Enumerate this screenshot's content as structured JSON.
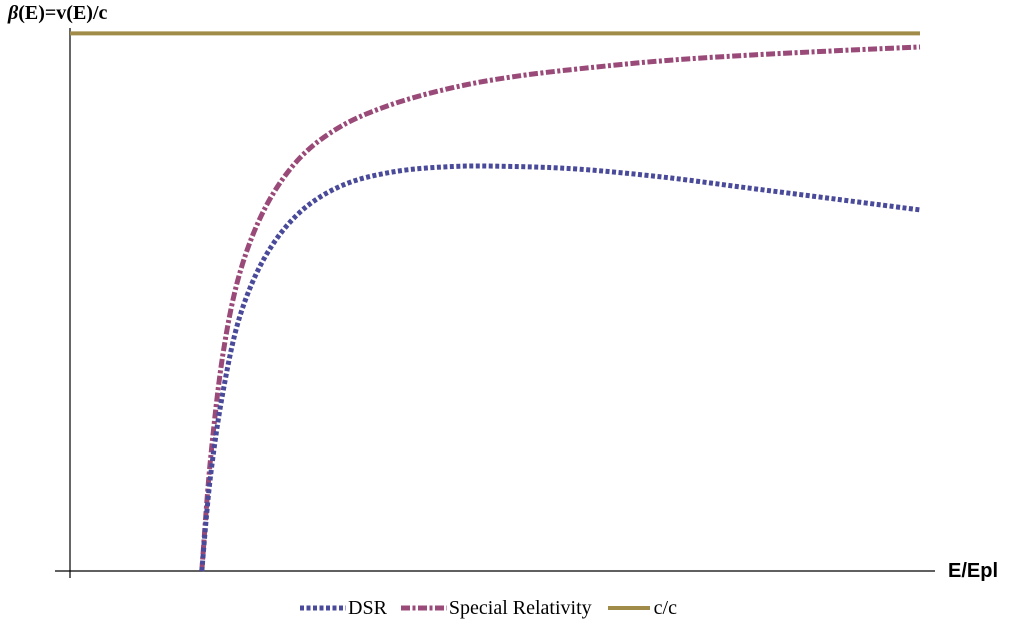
{
  "chart_data": {
    "type": "line",
    "ylabel_prefix": "β",
    "ylabel_rest": "(E)=v(E)/c",
    "xlabel": "E/Epl",
    "grid": false,
    "legend_position": "bottom-center",
    "xlim": [
      0,
      10
    ],
    "ylim": [
      0,
      1
    ],
    "series": [
      {
        "name": "DSR",
        "color": "#4a4a9a",
        "style": "dotted",
        "x": [
          1.55,
          1.65,
          1.8,
          2.0,
          2.3,
          2.7,
          3.2,
          3.8,
          4.5,
          5.2,
          6.0,
          7.0,
          8.0,
          9.0,
          10.0
        ],
        "y": [
          0.0,
          0.17,
          0.33,
          0.47,
          0.58,
          0.66,
          0.71,
          0.735,
          0.745,
          0.745,
          0.74,
          0.725,
          0.705,
          0.685,
          0.665
        ]
      },
      {
        "name": "Special Relativity",
        "color": "#9a4a78",
        "style": "dash-dot",
        "x": [
          1.55,
          1.65,
          1.8,
          2.0,
          2.3,
          2.7,
          3.2,
          3.8,
          4.5,
          5.2,
          6.0,
          7.0,
          8.0,
          9.0,
          10.0
        ],
        "y": [
          0.0,
          0.2,
          0.4,
          0.55,
          0.67,
          0.76,
          0.82,
          0.86,
          0.89,
          0.91,
          0.925,
          0.94,
          0.95,
          0.958,
          0.965
        ]
      },
      {
        "name": "c/c",
        "color": "#a08c48",
        "style": "solid",
        "x": [
          0,
          10
        ],
        "y": [
          0.99,
          0.99
        ]
      }
    ]
  }
}
